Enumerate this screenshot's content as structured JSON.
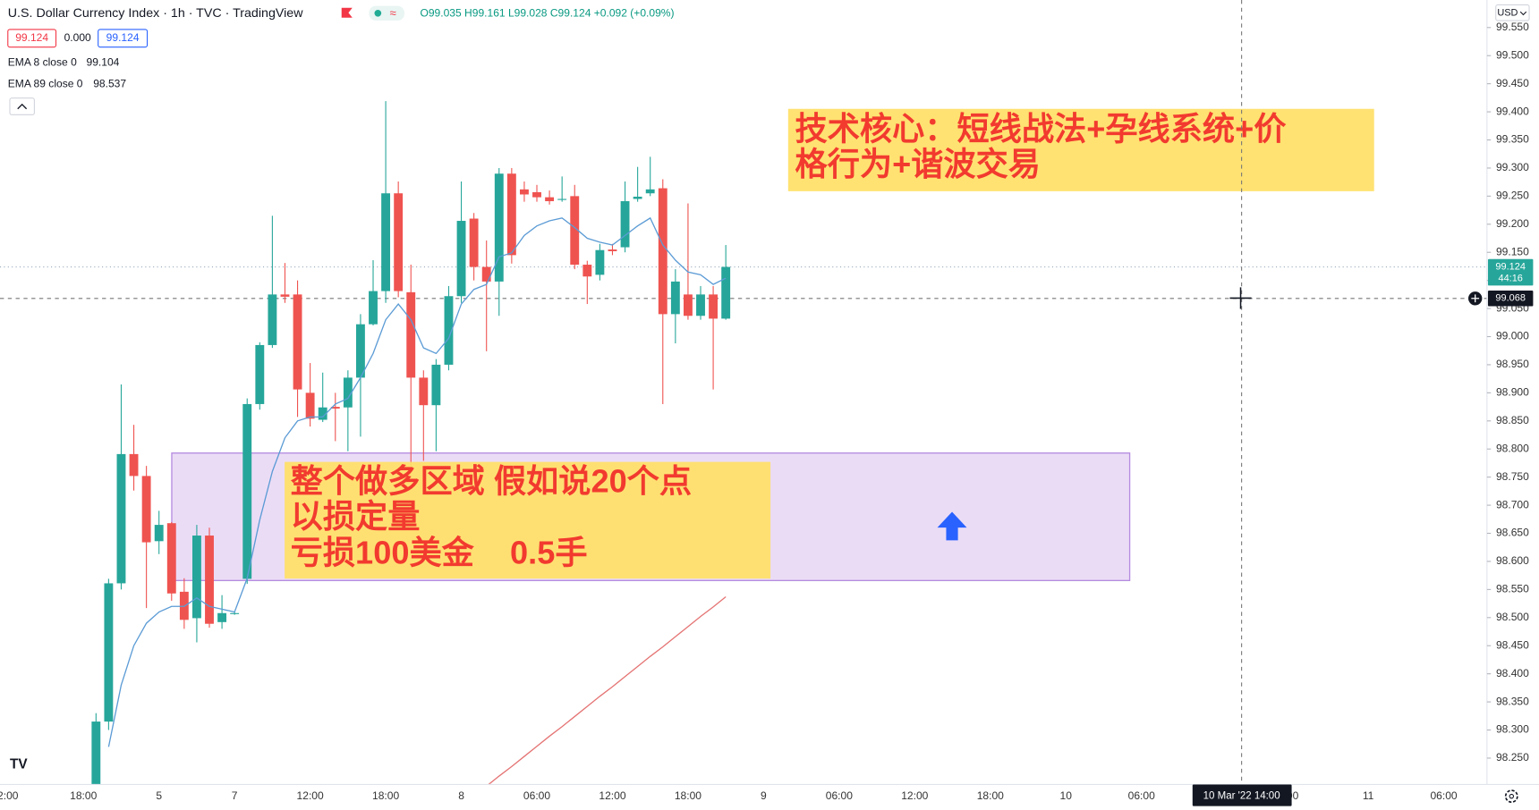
{
  "chart_data": {
    "type": "candlestick",
    "title": "U.S. Dollar Currency Index · 1h · TVC · TradingView",
    "ohlc_label": "O99.035 H99.161 L99.028 C99.124 +0.092 (+0.09%)",
    "bid": "99.124",
    "spread": "0.000",
    "ask": "99.124",
    "currency": "USD",
    "categories": [
      "2:00",
      null,
      null,
      null,
      null,
      null,
      "18:00",
      null,
      null,
      null,
      null,
      null,
      "5",
      null,
      null,
      null,
      null,
      null,
      "7",
      null,
      null,
      null,
      null,
      null,
      "12:00",
      null,
      null,
      null,
      null,
      null,
      "18:00",
      null,
      null,
      null,
      null,
      null,
      "8",
      null,
      null,
      null,
      null,
      null,
      "06:00",
      null,
      null,
      null,
      null,
      null,
      "12:00",
      null,
      null,
      null,
      null,
      null,
      "18:00",
      null,
      null,
      null,
      null,
      null,
      "9",
      null,
      null,
      null,
      null,
      null,
      "06:00",
      null,
      null,
      null,
      null,
      null,
      "12:00",
      null,
      null,
      null,
      null,
      null,
      "18:00",
      null,
      null,
      null,
      null,
      null,
      "10",
      null,
      null,
      null,
      null,
      null,
      "06:00",
      null,
      null,
      null,
      null,
      null,
      null,
      null,
      null,
      null,
      null,
      null,
      "00",
      null,
      null,
      null,
      null,
      null,
      "11",
      null,
      null,
      null,
      null,
      null,
      "06:00",
      null
    ],
    "open": [
      null,
      null,
      null,
      null,
      null,
      null,
      null,
      98.2,
      98.315,
      98.561,
      98.791,
      98.752,
      98.636,
      98.668,
      98.546,
      98.499,
      98.646,
      98.492,
      98.508,
      98.569,
      98.88,
      98.985,
      99.075,
      99.075,
      98.9,
      98.852,
      98.875,
      98.874,
      98.927,
      99.022,
      99.081,
      99.255,
      99.079,
      98.927,
      98.878,
      98.95,
      99.072,
      99.21,
      99.124,
      99.098,
      99.29,
      99.262,
      99.257,
      99.248,
      99.245,
      99.25,
      99.128,
      99.11,
      99.155,
      99.159,
      99.245,
      99.255,
      99.264,
      99.04,
      99.075,
      99.037,
      99.075,
      99.032,
      null,
      null,
      null,
      null,
      null,
      null,
      null,
      null,
      null,
      null,
      null,
      null,
      null,
      null,
      null,
      null,
      null,
      null,
      null,
      null,
      null,
      null,
      null,
      null,
      null,
      null,
      null,
      null,
      null,
      null,
      null,
      null,
      null,
      null,
      null,
      null,
      null,
      null,
      null,
      null,
      null,
      null,
      null,
      null,
      null,
      null,
      null,
      null,
      null,
      null,
      null,
      null,
      null,
      null,
      null,
      null,
      null,
      null
    ],
    "high": [
      null,
      null,
      null,
      null,
      null,
      null,
      null,
      98.33,
      98.569,
      98.915,
      98.843,
      98.77,
      98.69,
      98.67,
      98.57,
      98.665,
      98.66,
      98.54,
      98.51,
      98.89,
      98.99,
      99.215,
      99.131,
      99.1,
      98.953,
      98.936,
      98.9,
      98.94,
      99.04,
      99.136,
      99.419,
      99.276,
      99.128,
      98.94,
      98.96,
      99.09,
      99.276,
      99.22,
      99.171,
      99.3,
      99.3,
      99.276,
      99.27,
      99.26,
      99.285,
      99.27,
      99.135,
      99.165,
      99.165,
      99.276,
      99.302,
      99.32,
      99.28,
      99.12,
      99.237,
      99.09,
      99.09,
      99.163,
      null,
      null,
      null,
      null,
      null,
      null,
      null,
      null,
      null,
      null,
      null,
      null,
      null,
      null,
      null,
      null,
      null,
      null,
      null,
      null,
      null,
      null,
      null,
      null,
      null,
      null,
      null,
      null,
      null,
      null,
      null,
      null,
      null,
      null,
      null,
      null,
      null,
      null,
      null,
      null,
      null,
      null,
      null,
      null,
      null,
      null,
      null,
      null,
      null,
      null,
      null,
      null,
      null,
      null,
      null,
      null,
      null,
      null
    ],
    "low": [
      null,
      null,
      null,
      null,
      null,
      null,
      null,
      98.18,
      98.3,
      98.55,
      98.726,
      98.517,
      98.613,
      98.53,
      98.48,
      98.456,
      98.482,
      98.48,
      98.505,
      98.56,
      98.87,
      98.98,
      99.06,
      98.857,
      98.84,
      98.848,
      98.814,
      98.796,
      98.822,
      99.02,
      99.06,
      99.07,
      98.77,
      98.779,
      98.796,
      98.94,
      99.06,
      99.1,
      98.974,
      99.037,
      99.13,
      99.24,
      99.24,
      99.235,
      99.24,
      99.12,
      99.058,
      99.1,
      99.145,
      99.15,
      99.24,
      99.25,
      98.88,
      98.988,
      99.03,
      99.03,
      98.906,
      99.03,
      null,
      null,
      null,
      null,
      null,
      null,
      null,
      null,
      null,
      null,
      null,
      null,
      null,
      null,
      null,
      null,
      null,
      null,
      null,
      null,
      null,
      null,
      null,
      null,
      null,
      null,
      null,
      null,
      null,
      null,
      null,
      null,
      null,
      null,
      null,
      null,
      null,
      null,
      null,
      null,
      null,
      null,
      null,
      null,
      null,
      null,
      null,
      null,
      null,
      null,
      null,
      null,
      null,
      null,
      null,
      null,
      null,
      null
    ],
    "close": [
      null,
      null,
      null,
      null,
      null,
      null,
      null,
      98.315,
      98.561,
      98.791,
      98.752,
      98.634,
      98.665,
      98.543,
      98.496,
      98.646,
      98.489,
      98.508,
      98.508,
      98.88,
      98.985,
      99.075,
      99.071,
      98.906,
      98.854,
      98.874,
      98.872,
      98.927,
      99.022,
      99.081,
      99.255,
      99.081,
      98.927,
      98.878,
      98.95,
      99.072,
      99.206,
      99.124,
      99.098,
      99.29,
      99.145,
      99.253,
      99.248,
      99.241,
      99.245,
      99.128,
      99.107,
      99.154,
      99.152,
      99.241,
      99.249,
      99.262,
      99.04,
      99.098,
      99.037,
      99.075,
      99.032,
      99.124,
      null,
      null,
      null,
      null,
      null,
      null,
      null,
      null,
      null,
      null,
      null,
      null,
      null,
      null,
      null,
      null,
      null,
      null,
      null,
      null,
      null,
      null,
      null,
      null,
      null,
      null,
      null,
      null,
      null,
      null,
      null,
      null,
      null,
      null,
      null,
      null,
      null,
      null,
      null,
      null,
      null,
      null,
      null,
      null,
      null,
      null,
      null,
      null,
      null,
      null,
      null,
      null,
      null,
      null,
      null,
      null,
      null,
      null
    ],
    "up_color": "#26a69a",
    "down_color": "#ef5350",
    "series": [
      {
        "name": "EMA 8 close 0",
        "color": "#5b9bd5",
        "values": [
          null,
          null,
          null,
          null,
          null,
          null,
          null,
          null,
          98.27,
          98.38,
          98.45,
          98.49,
          98.51,
          98.52,
          98.52,
          98.535,
          98.52,
          98.515,
          98.51,
          98.57,
          98.674,
          98.76,
          98.82,
          98.85,
          98.857,
          98.857,
          98.88,
          98.89,
          98.927,
          98.97,
          99.03,
          99.058,
          99.03,
          98.98,
          98.97,
          98.997,
          99.058,
          99.084,
          99.093,
          99.142,
          99.149,
          99.18,
          99.197,
          99.206,
          99.211,
          99.194,
          99.175,
          99.168,
          99.163,
          99.18,
          99.197,
          99.211,
          99.163,
          99.136,
          99.115,
          99.11,
          99.093,
          99.104,
          null,
          null,
          null,
          null,
          null,
          null,
          null,
          null,
          null,
          null,
          null,
          null,
          null,
          null,
          null,
          null,
          null,
          null,
          null,
          null,
          null,
          null,
          null,
          null,
          null,
          null,
          null,
          null,
          null,
          null,
          null,
          null,
          null,
          null,
          null,
          null,
          null,
          null,
          null,
          null,
          null,
          null,
          null,
          null,
          null,
          null,
          null,
          null,
          null,
          null,
          null,
          null,
          null,
          null,
          null,
          null,
          null,
          null
        ]
      },
      {
        "name": "EMA 89 close 0",
        "color": "#e57373",
        "values": [
          null,
          null,
          null,
          null,
          null,
          null,
          null,
          null,
          null,
          null,
          null,
          null,
          null,
          null,
          null,
          null,
          null,
          null,
          null,
          null,
          null,
          null,
          null,
          null,
          null,
          null,
          null,
          null,
          null,
          null,
          null,
          null,
          null,
          null,
          null,
          null,
          null,
          null,
          98.2,
          98.218,
          98.235,
          98.253,
          98.271,
          98.289,
          98.306,
          98.324,
          98.342,
          98.36,
          98.377,
          98.395,
          98.413,
          98.431,
          98.448,
          98.466,
          98.484,
          98.502,
          98.519,
          98.537,
          null,
          null,
          null,
          null,
          null,
          null,
          null,
          null,
          null,
          null,
          null,
          null,
          null,
          null,
          null,
          null,
          null,
          null,
          null,
          null,
          null,
          null,
          null,
          null,
          null,
          null,
          null,
          null,
          null,
          null,
          null,
          null,
          null,
          null,
          null,
          null,
          null,
          null,
          null,
          null,
          null,
          null,
          null,
          null,
          null,
          null,
          null,
          null,
          null,
          null,
          null,
          null,
          null,
          null,
          null,
          null,
          null,
          null
        ]
      }
    ],
    "ylim": [
      98.203,
      99.599
    ],
    "yticks": [
      {
        "value": 99.55,
        "label": "99.550"
      },
      {
        "value": 99.5,
        "label": "99.500"
      },
      {
        "value": 99.45,
        "label": "99.450"
      },
      {
        "value": 99.4,
        "label": "99.400"
      },
      {
        "value": 99.35,
        "label": "99.350"
      },
      {
        "value": 99.3,
        "label": "99.300"
      },
      {
        "value": 99.25,
        "label": "99.250"
      },
      {
        "value": 99.2,
        "label": "99.200"
      },
      {
        "value": 99.15,
        "label": "99.150"
      },
      {
        "value": 99.1,
        "label": "99.100"
      },
      {
        "value": 99.05,
        "label": "99.050"
      },
      {
        "value": 99.0,
        "label": "99.000"
      },
      {
        "value": 98.95,
        "label": "98.950"
      },
      {
        "value": 98.9,
        "label": "98.900"
      },
      {
        "value": 98.85,
        "label": "98.850"
      },
      {
        "value": 98.8,
        "label": "98.800"
      },
      {
        "value": 98.75,
        "label": "98.750"
      },
      {
        "value": 98.7,
        "label": "98.700"
      },
      {
        "value": 98.65,
        "label": "98.650"
      },
      {
        "value": 98.6,
        "label": "98.600"
      },
      {
        "value": 98.55,
        "label": "98.550"
      },
      {
        "value": 98.5,
        "label": "98.500"
      },
      {
        "value": 98.45,
        "label": "98.450"
      },
      {
        "value": 98.4,
        "label": "98.400"
      },
      {
        "value": 98.35,
        "label": "98.350"
      },
      {
        "value": 98.3,
        "label": "98.300"
      },
      {
        "value": 98.25,
        "label": "98.250"
      }
    ],
    "countdown": "44:16",
    "crosshair": {
      "price": 99.068,
      "time": "10 Mar '22 14:00"
    },
    "annotations": [
      {
        "lines": [
          "技术核心：短线战法+孕线系统+价",
          "格行为+谐波交易"
        ]
      },
      {
        "lines": [
          "整个做多区域 假如说20个点",
          "以损定量",
          "亏损100美金    0.5手"
        ]
      }
    ]
  }
}
